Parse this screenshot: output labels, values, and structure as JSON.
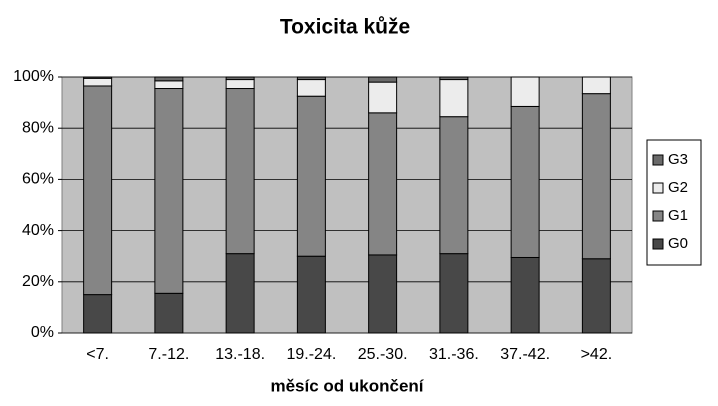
{
  "chart_data": {
    "type": "stacked_bar_100",
    "title": "Toxicita kůže",
    "x_label": "měsíc od ukončení",
    "categories": [
      "<7.",
      "7.-12.",
      "13.-18.",
      "19.-24.",
      "25.-30.",
      "31.-36.",
      "37.-42.",
      ">42."
    ],
    "series": [
      {
        "name": "G0",
        "color": "#484848",
        "values": [
          15,
          15.5,
          31,
          30,
          30.5,
          31,
          29.5,
          29
        ]
      },
      {
        "name": "G1",
        "color": "#858585",
        "values": [
          81.5,
          80,
          64.5,
          62.5,
          55.5,
          53.5,
          59,
          64.5
        ]
      },
      {
        "name": "G2",
        "color": "#ececec",
        "values": [
          3,
          3,
          3.5,
          6.5,
          12,
          14.5,
          11.5,
          6.5
        ]
      },
      {
        "name": "G3",
        "color": "#6a6a6a",
        "values": [
          0.5,
          1.5,
          1,
          1,
          2,
          1,
          0,
          0
        ]
      }
    ],
    "ylim": [
      0,
      100
    ],
    "yticks": [
      {
        "value": 0,
        "label": "0%"
      },
      {
        "value": 20,
        "label": "20%"
      },
      {
        "value": 40,
        "label": "40%"
      },
      {
        "value": 60,
        "label": "60%"
      },
      {
        "value": 80,
        "label": "80%"
      },
      {
        "value": 100,
        "label": "100%"
      }
    ],
    "grid": true,
    "legend": "right",
    "plot_background": "#c0c0c0"
  }
}
